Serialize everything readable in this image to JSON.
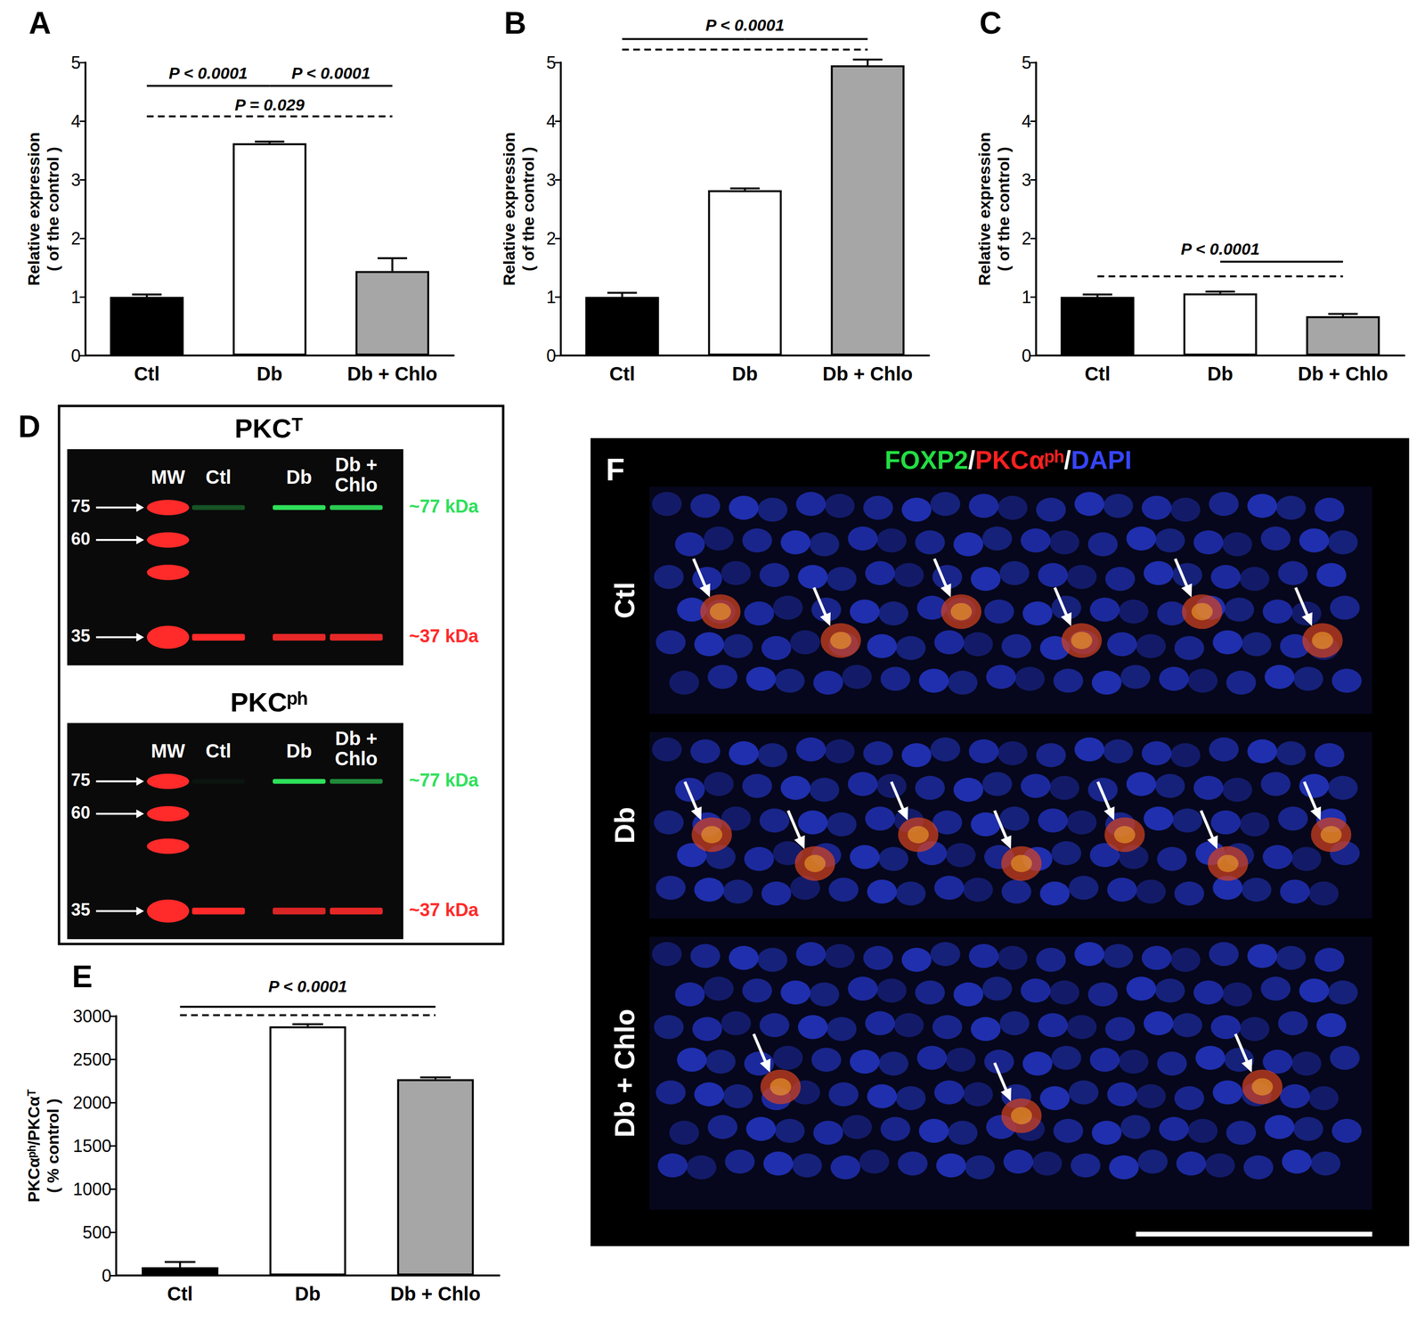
{
  "chart_data": [
    {
      "type": "bar",
      "panel": "A",
      "categories": [
        "Ctl",
        "Db",
        "Db + Chlo"
      ],
      "values": [
        1.0,
        3.62,
        1.44
      ],
      "errors": [
        0.04,
        0.03,
        0.22
      ],
      "colors": [
        "#000000",
        "#ffffff",
        "#a6a6a6"
      ],
      "ylabel": "Relative expression\n( of the control )",
      "ylim": [
        0,
        5
      ],
      "yticks": [
        0,
        1,
        2,
        3,
        4,
        5
      ],
      "grid": false,
      "brackets": [
        {
          "from": 0,
          "to": 1,
          "y": 4.6,
          "line_style": "solid"
        },
        {
          "from": 1,
          "to": 2,
          "y": 4.6,
          "line_style": "solid"
        },
        {
          "from": 0,
          "to": 2,
          "y": 4.08,
          "line_style": "dashed"
        }
      ],
      "p_labels": [
        {
          "text": "P < 0.0001",
          "x": 0.5,
          "y": 4.68
        },
        {
          "text": "P < 0.0001",
          "x": 1.5,
          "y": 4.68
        },
        {
          "text": "P = 0.029",
          "x": 1,
          "y": 4.14
        }
      ]
    },
    {
      "type": "bar",
      "panel": "B",
      "categories": [
        "Ctl",
        "Db",
        "Db + Chlo"
      ],
      "values": [
        1.0,
        2.82,
        4.95
      ],
      "errors": [
        0.07,
        0.03,
        0.1
      ],
      "colors": [
        "#000000",
        "#ffffff",
        "#a6a6a6"
      ],
      "ylabel": "Relative expression\n( of the control )",
      "ylim": [
        0,
        5
      ],
      "yticks": [
        0,
        1,
        2,
        3,
        4,
        5
      ],
      "grid": false,
      "brackets": [
        {
          "from": 0,
          "to": 1,
          "y": 5.4,
          "line_style": "solid"
        },
        {
          "from": 1,
          "to": 2,
          "y": 5.4,
          "line_style": "solid"
        },
        {
          "from": 0,
          "to": 2,
          "y": 5.22,
          "line_style": "dashed"
        }
      ],
      "p_labels": [
        {
          "text": "P < 0.0001",
          "x": 1,
          "y": 5.5
        }
      ]
    },
    {
      "type": "bar",
      "panel": "C",
      "categories": [
        "Ctl",
        "Db",
        "Db + Chlo"
      ],
      "values": [
        1.0,
        1.06,
        0.67
      ],
      "errors": [
        0.04,
        0.03,
        0.04
      ],
      "colors": [
        "#000000",
        "#ffffff",
        "#a6a6a6"
      ],
      "ylabel": "Relative expression\n( of the control )",
      "ylim": [
        0,
        5
      ],
      "yticks": [
        0,
        1,
        2,
        3,
        4,
        5
      ],
      "grid": false,
      "brackets": [
        {
          "from": 1,
          "to": 2,
          "y": 1.6,
          "line_style": "solid"
        },
        {
          "from": 0,
          "to": 2,
          "y": 1.35,
          "line_style": "dashed"
        }
      ],
      "p_labels": [
        {
          "text": "P < 0.0001",
          "x": 1,
          "y": 1.68
        }
      ]
    },
    {
      "type": "bar",
      "panel": "E",
      "categories": [
        "Ctl",
        "Db",
        "Db + Chlo"
      ],
      "values": [
        95,
        2880,
        2270
      ],
      "errors": [
        60,
        25,
        20
      ],
      "colors": [
        "#000000",
        "#ffffff",
        "#a6a6a6"
      ],
      "ylabel": "PKCαᵖʰ/PKCαᵀ\n( % control )",
      "ylim": [
        0,
        3000
      ],
      "yticks": [
        0,
        500,
        1000,
        1500,
        2000,
        2500,
        3000
      ],
      "grid": false,
      "brackets": [
        {
          "from": 0,
          "to": 1,
          "y": 3107,
          "line_style": "solid"
        },
        {
          "from": 1,
          "to": 2,
          "y": 3107,
          "line_style": "solid"
        },
        {
          "from": 0,
          "to": 2,
          "y": 3010,
          "line_style": "dashed"
        }
      ],
      "p_labels": [
        {
          "text": "P < 0.0001",
          "x": 1,
          "y": 3250
        }
      ]
    }
  ],
  "blot_panel": {
    "panel": "D",
    "blots": [
      {
        "title": "PKCᵀ",
        "lanes": [
          "MW",
          "Ctl",
          "Db",
          "Db + Chlo"
        ],
        "ladder": [
          "75",
          "60",
          "35"
        ],
        "bands": [
          {
            "label": "~77 kDa",
            "color": "#2ee05a",
            "intensity": [
              0.35,
              1,
              0.9
            ]
          },
          {
            "label": "~37 kDa",
            "color": "#ff2a2a",
            "intensity": [
              1,
              0.9,
              0.9
            ]
          }
        ]
      },
      {
        "title": "PKCᵖʰ",
        "lanes": [
          "MW",
          "Ctl",
          "Db",
          "Db + Chlo"
        ],
        "ladder": [
          "75",
          "60",
          "35"
        ],
        "bands": [
          {
            "label": "~77 kDa",
            "color": "#2ee05a",
            "intensity": [
              0.05,
              1,
              0.6
            ]
          },
          {
            "label": "~37 kDa",
            "color": "#ff2a2a",
            "intensity": [
              1,
              0.85,
              0.9
            ]
          }
        ]
      }
    ]
  },
  "image_panel": {
    "panel": "F",
    "title_parts": [
      {
        "text": "FOXP2",
        "color": "#22dd44"
      },
      {
        "text": "/",
        "color": "#ffffff"
      },
      {
        "text": "PKCαᵖʰ",
        "color": "#ff2020"
      },
      {
        "text": "/",
        "color": "#ffffff"
      },
      {
        "text": "DAPI",
        "color": "#3545ff"
      }
    ],
    "rows": [
      {
        "label": "Ctl",
        "arrows": 6
      },
      {
        "label": "Db",
        "arrows": 7
      },
      {
        "label": "Db + Chlo",
        "arrows": 3
      }
    ]
  }
}
